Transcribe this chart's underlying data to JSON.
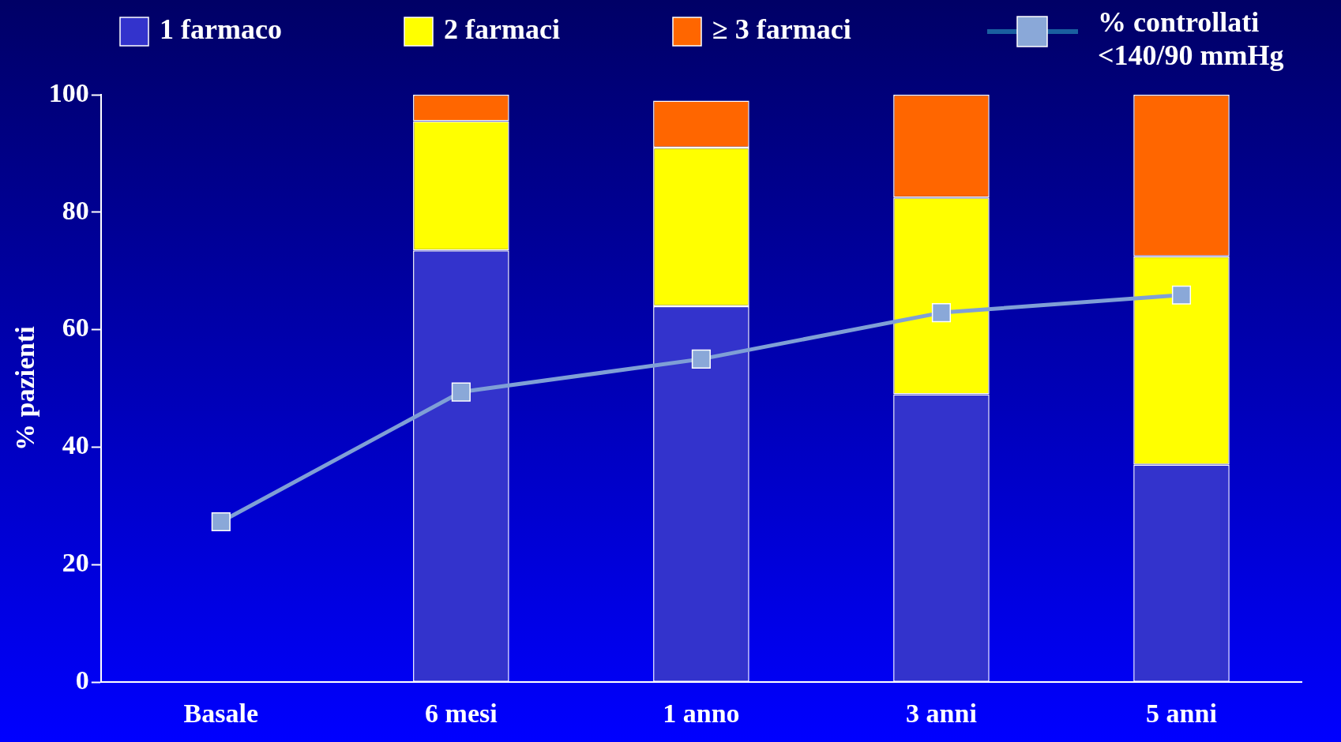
{
  "chart_data": {
    "type": "bar",
    "stacked": true,
    "ylabel": "% pazienti",
    "categories": [
      "Basale",
      "6 mesi",
      "1 anno",
      "3 anni",
      "5 anni"
    ],
    "series": [
      {
        "name": "1 farmaco",
        "color": "#3333cc",
        "values": [
          null,
          73.5,
          64,
          49,
          37
        ]
      },
      {
        "name": "2 farmaci",
        "color": "#ffff00",
        "values": [
          null,
          22,
          27,
          33.5,
          35.5
        ]
      },
      {
        "name": "≥ 3 farmaci",
        "color": "#ff6600",
        "values": [
          null,
          4.5,
          8,
          17.5,
          27.5
        ]
      },
      {
        "name": "% controllati <140/90 mmHg",
        "type": "line",
        "color": "#7f9fd6",
        "values": [
          27.3,
          49.4,
          55,
          62.9,
          65.9
        ]
      }
    ],
    "ylim": [
      0,
      100
    ],
    "yticks": [
      0,
      20,
      40,
      60,
      80,
      100
    ],
    "grid": false,
    "legend": "top",
    "marker": "square",
    "line_style": "solid"
  }
}
